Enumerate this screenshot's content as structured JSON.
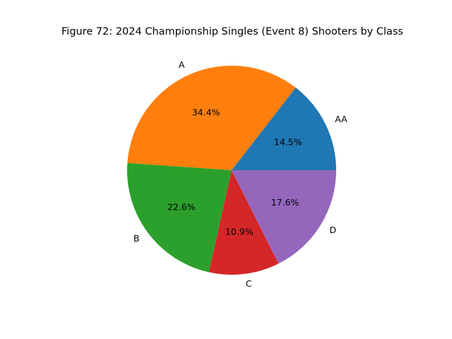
{
  "chart_data": {
    "type": "pie",
    "title": "Figure 72: 2024 Championship Singles (Event 8) Shooters by Class",
    "categories": [
      "AA",
      "A",
      "B",
      "C",
      "D"
    ],
    "values": [
      14.5,
      34.4,
      22.6,
      10.9,
      17.6
    ],
    "value_labels": [
      "14.5%",
      "34.4%",
      "22.6%",
      "10.9%",
      "17.6%"
    ],
    "colors": [
      "#1f77b4",
      "#ff7f0e",
      "#2ca02c",
      "#d62728",
      "#9467bd"
    ],
    "start_angle_deg": 0,
    "direction": "counterclockwise",
    "legend": "none"
  }
}
